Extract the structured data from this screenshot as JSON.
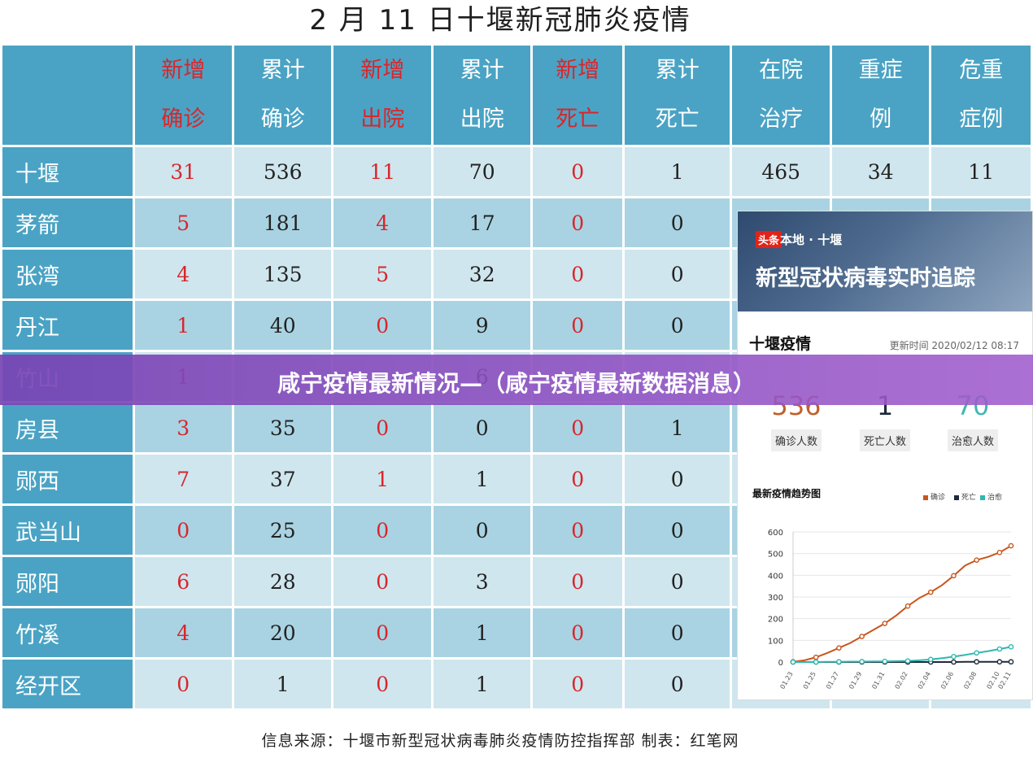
{
  "title": "2 月 11 日十堰新冠肺炎疫情",
  "table": {
    "headers": [
      {
        "top": "新增",
        "bottom": "确诊",
        "red": true
      },
      {
        "top": "累计",
        "bottom": "确诊",
        "red": false
      },
      {
        "top": "新增",
        "bottom": "出院",
        "red": true
      },
      {
        "top": "累计",
        "bottom": "出院",
        "red": false
      },
      {
        "top": "新增",
        "bottom": "死亡",
        "red": true
      },
      {
        "top": "累计",
        "bottom": "死亡",
        "red": false
      },
      {
        "top": "在院",
        "bottom": "治疗",
        "red": false
      },
      {
        "top": "重症",
        "bottom": "例",
        "red": false
      },
      {
        "top": "危重",
        "bottom": "症例",
        "red": false
      }
    ],
    "rows": [
      {
        "city": "十堰",
        "values": [
          "31",
          "536",
          "11",
          "70",
          "0",
          "1",
          "465",
          "34",
          "11"
        ]
      },
      {
        "city": "茅箭",
        "values": [
          "5",
          "181",
          "4",
          "17",
          "0",
          "0",
          "",
          "",
          ""
        ]
      },
      {
        "city": "张湾",
        "values": [
          "4",
          "135",
          "5",
          "32",
          "0",
          "0",
          "",
          "",
          ""
        ]
      },
      {
        "city": "丹江",
        "values": [
          "1",
          "40",
          "0",
          "9",
          "0",
          "0",
          "",
          "",
          ""
        ]
      },
      {
        "city": "竹山",
        "values": [
          "1",
          "",
          "",
          "6",
          "",
          "",
          "",
          "",
          ""
        ]
      },
      {
        "city": "房县",
        "values": [
          "3",
          "35",
          "0",
          "0",
          "0",
          "1",
          "",
          "",
          ""
        ]
      },
      {
        "city": "郧西",
        "values": [
          "7",
          "37",
          "1",
          "1",
          "0",
          "0",
          "",
          "",
          ""
        ]
      },
      {
        "city": "武当山",
        "values": [
          "0",
          "25",
          "0",
          "0",
          "0",
          "0",
          "",
          "",
          ""
        ]
      },
      {
        "city": "郧阳",
        "values": [
          "6",
          "28",
          "0",
          "3",
          "0",
          "0",
          "",
          "",
          ""
        ]
      },
      {
        "city": "竹溪",
        "values": [
          "4",
          "20",
          "0",
          "1",
          "0",
          "0",
          "",
          "",
          ""
        ]
      },
      {
        "city": "经开区",
        "values": [
          "0",
          "1",
          "0",
          "1",
          "0",
          "0",
          "",
          "",
          ""
        ]
      }
    ]
  },
  "source": "信息来源：十堰市新型冠状病毒肺炎疫情防控指挥部   制表：红笔网",
  "banner": "咸宁疫情最新情况—（咸宁疫情最新数据消息）",
  "card": {
    "logo": "头条",
    "location": "本地 · 十堰",
    "headline": "新型冠状病毒实时追踪",
    "subtitle": "十堰疫情",
    "updated": "更新时间 2020/02/12 08:17",
    "stats": [
      {
        "value": "536",
        "label": "确诊人数",
        "color": "#c0602a"
      },
      {
        "value": "1",
        "label": "死亡人数",
        "color": "#1d2a3a"
      },
      {
        "value": "70",
        "label": "治愈人数",
        "color": "#3fb8b4"
      }
    ]
  },
  "chart_data": {
    "type": "line",
    "title": "最新疫情趋势图",
    "legend_position": "top-right",
    "x": [
      "01.23",
      "01.24",
      "01.25",
      "01.26",
      "01.27",
      "01.28",
      "01.29",
      "01.30",
      "01.31",
      "02.01",
      "02.02",
      "02.03",
      "02.04",
      "02.05",
      "02.06",
      "02.07",
      "02.08",
      "02.09",
      "02.10",
      "02.11"
    ],
    "x_tick_labels": [
      "01.23",
      "01.25",
      "01.27",
      "01.29",
      "01.31",
      "02.02",
      "02.04",
      "02.06",
      "02.08",
      "02.10",
      "02.11"
    ],
    "ylim": [
      0,
      600
    ],
    "yticks": [
      0,
      100,
      200,
      300,
      400,
      500,
      600
    ],
    "grid": true,
    "series": [
      {
        "name": "确诊",
        "color": "#c8561c",
        "values": [
          1,
          8,
          22,
          42,
          65,
          88,
          118,
          148,
          178,
          215,
          258,
          295,
          322,
          355,
          398,
          445,
          470,
          485,
          505,
          536
        ]
      },
      {
        "name": "死亡",
        "color": "#1d2a3a",
        "values": [
          0,
          0,
          0,
          0,
          0,
          0,
          0,
          0,
          0,
          0,
          0,
          0,
          0,
          0,
          0,
          1,
          1,
          1,
          1,
          1
        ]
      },
      {
        "name": "治愈",
        "color": "#2fb7b0",
        "values": [
          0,
          0,
          0,
          1,
          1,
          2,
          2,
          3,
          3,
          4,
          5,
          8,
          12,
          18,
          25,
          33,
          42,
          50,
          60,
          70
        ]
      }
    ]
  }
}
